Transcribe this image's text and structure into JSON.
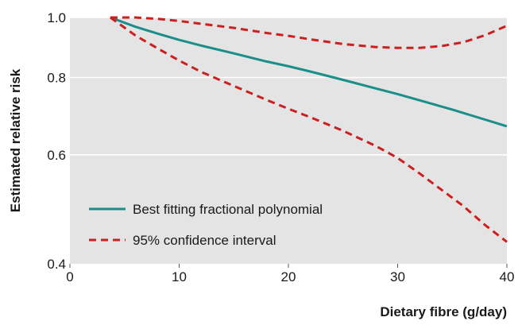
{
  "chart_data": {
    "type": "line",
    "xlabel": "Dietary fibre (g/day)",
    "ylabel": "Estimated relative risk",
    "xlim": [
      0,
      40
    ],
    "ylim": [
      0.4,
      1.0
    ],
    "yscale": "log",
    "x_ticks": [
      0,
      10,
      20,
      30,
      40
    ],
    "y_ticks": [
      0.4,
      0.6,
      0.8,
      1.0
    ],
    "x_tick_labels": [
      "0",
      "10",
      "20",
      "30",
      "40"
    ],
    "y_tick_labels": [
      "0.4",
      "0.6",
      "0.8",
      "1.0"
    ],
    "grid": "horizontal",
    "background": "#e4e4e4",
    "legend_position": "lower-left",
    "legend_entries": [
      {
        "label": "Best fitting fractional polynomial",
        "color": "#1a8f8a",
        "style": "solid"
      },
      {
        "label": "95% confidence interval",
        "color": "#cc1f1f",
        "style": "dashed"
      }
    ],
    "series": [
      {
        "name": "Best fitting fractional polynomial",
        "color": "#1a8f8a",
        "style": "solid",
        "x": [
          3.7,
          6,
          8,
          10,
          12,
          15,
          18,
          20,
          22,
          25,
          28,
          30,
          32,
          35,
          38,
          40
        ],
        "y": [
          1.0,
          0.966,
          0.942,
          0.92,
          0.901,
          0.875,
          0.849,
          0.834,
          0.818,
          0.793,
          0.768,
          0.752,
          0.735,
          0.71,
          0.684,
          0.667
        ]
      },
      {
        "name": "95% confidence interval",
        "color": "#cc1f1f",
        "style": "dashed",
        "x": [
          3.7,
          6,
          8,
          10,
          12,
          15,
          18,
          20,
          22,
          25,
          28,
          30,
          32,
          34,
          36,
          38,
          40
        ],
        "y": [
          1.0,
          1.0,
          0.995,
          0.987,
          0.977,
          0.962,
          0.944,
          0.934,
          0.922,
          0.906,
          0.896,
          0.893,
          0.893,
          0.899,
          0.912,
          0.936,
          0.97
        ]
      },
      {
        "name": "95% confidence interval",
        "color": "#cc1f1f",
        "style": "dashed",
        "x": [
          3.7,
          6,
          8,
          10,
          12,
          15,
          18,
          20,
          22,
          25,
          28,
          30,
          32,
          34,
          36,
          38,
          40
        ],
        "y": [
          1.0,
          0.935,
          0.892,
          0.852,
          0.817,
          0.775,
          0.736,
          0.712,
          0.69,
          0.656,
          0.62,
          0.593,
          0.56,
          0.527,
          0.496,
          0.462,
          0.434
        ]
      }
    ]
  }
}
